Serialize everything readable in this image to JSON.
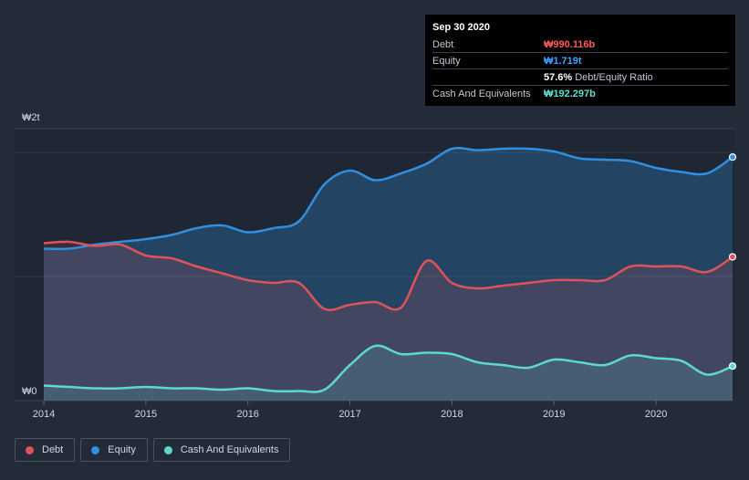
{
  "tooltip": {
    "date": "Sep 30 2020",
    "rows": {
      "debt": {
        "label": "Debt",
        "value": "₩990.116b"
      },
      "equity": {
        "label": "Equity",
        "value": "₩1.719t"
      },
      "ratio": {
        "value": "57.6%",
        "label": "Debt/Equity Ratio"
      },
      "cash": {
        "label": "Cash And Equivalents",
        "value": "₩192.297b"
      }
    }
  },
  "legend": {
    "debt": "Debt",
    "equity": "Equity",
    "cash": "Cash And Equivalents"
  },
  "colors": {
    "debt": "#e0525a",
    "equity": "#2f8fe0",
    "cash": "#5ed9cc",
    "debtText": "#ff5a5f",
    "equityText": "#3fa3ff",
    "cashText": "#5fe0d0"
  },
  "chart_data": {
    "type": "area",
    "title": "",
    "xlabel": "",
    "ylabel": "",
    "y_tick_labels": [
      "₩0",
      "₩2t"
    ],
    "y_range": [
      0,
      2.0
    ],
    "x_range": [
      2014.0,
      2020.75
    ],
    "x_ticks": [
      {
        "value": 2014,
        "label": "2014"
      },
      {
        "value": 2015,
        "label": "2015"
      },
      {
        "value": 2016,
        "label": "2016"
      },
      {
        "value": 2017,
        "label": "2017"
      },
      {
        "value": 2018,
        "label": "2018"
      },
      {
        "value": 2019,
        "label": "2019"
      },
      {
        "value": 2020,
        "label": "2020"
      }
    ],
    "units": "trillion KRW",
    "series": [
      {
        "key": "equity",
        "name": "Equity",
        "points": [
          [
            2014.0,
            1.05
          ],
          [
            2014.25,
            1.05
          ],
          [
            2014.5,
            1.08
          ],
          [
            2014.75,
            1.1
          ],
          [
            2015.0,
            1.12
          ],
          [
            2015.25,
            1.15
          ],
          [
            2015.5,
            1.2
          ],
          [
            2015.75,
            1.22
          ],
          [
            2016.0,
            1.17
          ],
          [
            2016.25,
            1.2
          ],
          [
            2016.5,
            1.25
          ],
          [
            2016.75,
            1.52
          ],
          [
            2017.0,
            1.62
          ],
          [
            2017.25,
            1.55
          ],
          [
            2017.5,
            1.6
          ],
          [
            2017.75,
            1.67
          ],
          [
            2018.0,
            1.78
          ],
          [
            2018.25,
            1.77
          ],
          [
            2018.5,
            1.78
          ],
          [
            2018.75,
            1.78
          ],
          [
            2019.0,
            1.76
          ],
          [
            2019.25,
            1.71
          ],
          [
            2019.5,
            1.7
          ],
          [
            2019.75,
            1.69
          ],
          [
            2020.0,
            1.64
          ],
          [
            2020.25,
            1.61
          ],
          [
            2020.5,
            1.6
          ],
          [
            2020.75,
            1.719
          ]
        ]
      },
      {
        "key": "debt",
        "name": "Debt",
        "points": [
          [
            2014.0,
            1.09
          ],
          [
            2014.25,
            1.1
          ],
          [
            2014.5,
            1.07
          ],
          [
            2014.75,
            1.08
          ],
          [
            2015.0,
            1.0
          ],
          [
            2015.25,
            0.98
          ],
          [
            2015.5,
            0.92
          ],
          [
            2015.75,
            0.87
          ],
          [
            2016.0,
            0.82
          ],
          [
            2016.25,
            0.8
          ],
          [
            2016.5,
            0.8
          ],
          [
            2016.75,
            0.61
          ],
          [
            2017.0,
            0.64
          ],
          [
            2017.25,
            0.66
          ],
          [
            2017.5,
            0.62
          ],
          [
            2017.75,
            0.96
          ],
          [
            2018.0,
            0.8
          ],
          [
            2018.25,
            0.76
          ],
          [
            2018.5,
            0.78
          ],
          [
            2018.75,
            0.8
          ],
          [
            2019.0,
            0.82
          ],
          [
            2019.25,
            0.82
          ],
          [
            2019.5,
            0.82
          ],
          [
            2019.75,
            0.92
          ],
          [
            2020.0,
            0.92
          ],
          [
            2020.25,
            0.92
          ],
          [
            2020.5,
            0.88
          ],
          [
            2020.75,
            0.99
          ]
        ]
      },
      {
        "key": "cash",
        "name": "Cash And Equivalents",
        "points": [
          [
            2014.0,
            0.05
          ],
          [
            2014.25,
            0.04
          ],
          [
            2014.5,
            0.03
          ],
          [
            2014.75,
            0.03
          ],
          [
            2015.0,
            0.04
          ],
          [
            2015.25,
            0.03
          ],
          [
            2015.5,
            0.03
          ],
          [
            2015.75,
            0.02
          ],
          [
            2016.0,
            0.03
          ],
          [
            2016.25,
            0.01
          ],
          [
            2016.5,
            0.01
          ],
          [
            2016.75,
            0.02
          ],
          [
            2017.0,
            0.2
          ],
          [
            2017.25,
            0.34
          ],
          [
            2017.5,
            0.28
          ],
          [
            2017.75,
            0.29
          ],
          [
            2018.0,
            0.28
          ],
          [
            2018.25,
            0.22
          ],
          [
            2018.5,
            0.2
          ],
          [
            2018.75,
            0.18
          ],
          [
            2019.0,
            0.24
          ],
          [
            2019.25,
            0.22
          ],
          [
            2019.5,
            0.2
          ],
          [
            2019.75,
            0.27
          ],
          [
            2020.0,
            0.25
          ],
          [
            2020.25,
            0.23
          ],
          [
            2020.5,
            0.13
          ],
          [
            2020.75,
            0.192
          ]
        ]
      }
    ]
  }
}
